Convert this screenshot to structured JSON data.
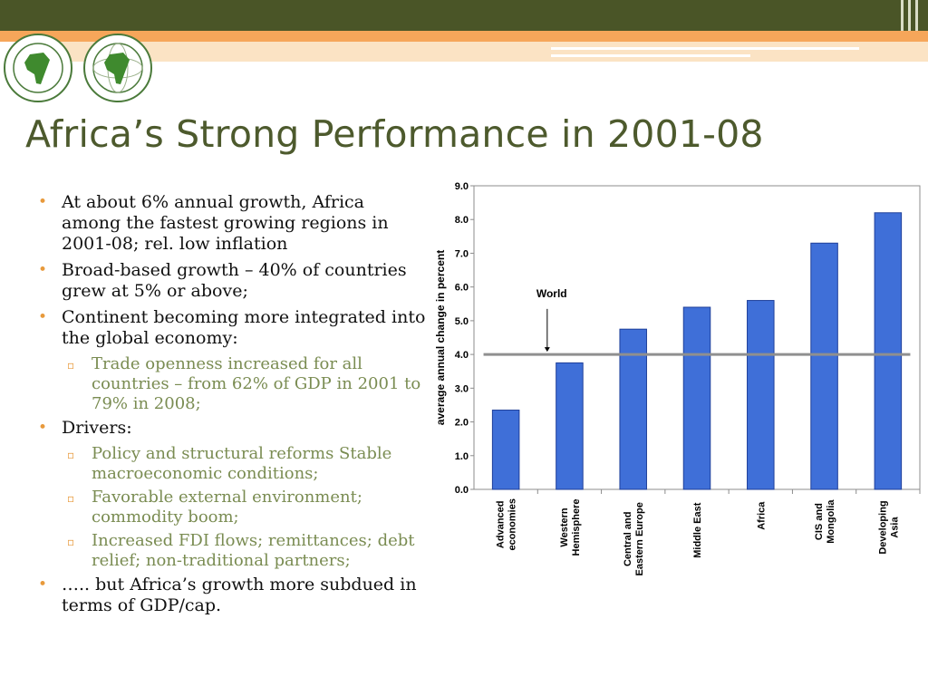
{
  "slide": {
    "title": "Africa’s Strong Performance in 2001-08"
  },
  "bullets": [
    {
      "level": 1,
      "text": "At about 6%  annual growth, Africa among the fastest growing regions in 2001-08;  rel. low inflation"
    },
    {
      "level": 1,
      "text": "Broad-based growth – 40% of countries grew at 5% or above;"
    },
    {
      "level": 1,
      "text": "Continent becoming more integrated into the global economy:"
    },
    {
      "level": 2,
      "text": "Trade openness increased for all countries – from 62% of GDP in 2001 to 79% in 2008;"
    },
    {
      "level": 1,
      "text": "Drivers:"
    },
    {
      "level": 2,
      "text": "Policy and structural reforms Stable macroeconomic conditions;"
    },
    {
      "level": 2,
      "text": "Favorable external environment; commodity boom;"
    },
    {
      "level": 2,
      "text": "Increased FDI flows; remittances; debt relief;  non-traditional partners;"
    },
    {
      "level": 1,
      "text": "….. but Africa’s growth more subdued in terms of GDP/cap."
    }
  ],
  "logos": [
    {
      "icon": "afdb-bank-logo-icon"
    },
    {
      "icon": "afdb-fund-logo-icon"
    }
  ],
  "colors": {
    "title": "#4d5a2d",
    "bar": "#3f6fd8",
    "bullet_marker": "#e89a3c",
    "sub_bullet_text": "#7a8c52",
    "header_dark": "#4a5527",
    "header_orange": "#f6a65a"
  },
  "chart_data": {
    "type": "bar",
    "ylabel": "average annual change in percent",
    "ylim": [
      0,
      9
    ],
    "yticks": [
      "0.0",
      "1.0",
      "2.0",
      "3.0",
      "4.0",
      "5.0",
      "6.0",
      "7.0",
      "8.0",
      "9.0"
    ],
    "grid": false,
    "categories": [
      [
        "Advanced",
        "economies"
      ],
      [
        "Western",
        "Hemisphere"
      ],
      [
        "Central and",
        "Eastern Europe"
      ],
      [
        "Middle East"
      ],
      [
        "Africa"
      ],
      [
        "CIS and",
        "Mongolia"
      ],
      [
        "Developing",
        "Asia"
      ]
    ],
    "values": [
      2.35,
      3.75,
      4.75,
      5.4,
      5.6,
      7.3,
      8.2
    ],
    "reference_line": {
      "label": "World",
      "value": 4.0
    }
  }
}
